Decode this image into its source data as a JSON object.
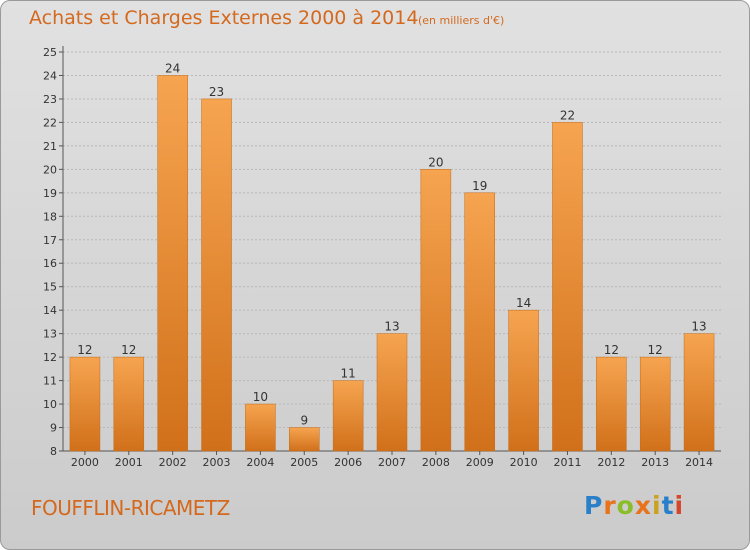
{
  "header": {
    "title": "Achats et Charges Externes 2000 à 2014",
    "unit": "(en milliers d'€)"
  },
  "footer": {
    "town": "FOUFFLIN-RICAMETZ",
    "brand": "Proxiti",
    "brand_letters": [
      "P",
      "r",
      "o",
      "x",
      "i",
      "t",
      "i"
    ],
    "brand_colors": [
      "#2a7fc9",
      "#e8731a",
      "#8bbd2a",
      "#e8731a",
      "#c9a21f",
      "#2a7fc9",
      "#d6462a"
    ]
  },
  "colors": {
    "bar_light": "#f6a450",
    "bar_dark": "#d1701a",
    "text_accent": "#d4691e",
    "grid": "#b8b8b8",
    "axis_text": "#333333"
  },
  "chart_data": {
    "type": "bar",
    "title": "Achats et Charges Externes 2000 à 2014",
    "subtitle": "(en milliers d'€)",
    "xlabel": "",
    "ylabel": "",
    "categories": [
      "2000",
      "2001",
      "2002",
      "2003",
      "2004",
      "2005",
      "2006",
      "2007",
      "2008",
      "2009",
      "2010",
      "2011",
      "2012",
      "2013",
      "2014"
    ],
    "values": [
      12,
      12,
      24,
      23,
      10,
      9,
      11,
      13,
      20,
      19,
      14,
      22,
      12,
      12,
      13
    ],
    "ylim": [
      8,
      25
    ],
    "yticks": [
      8,
      9,
      10,
      11,
      12,
      13,
      14,
      15,
      16,
      17,
      18,
      19,
      20,
      21,
      22,
      23,
      24,
      25
    ],
    "grid": true,
    "legend": "none"
  }
}
